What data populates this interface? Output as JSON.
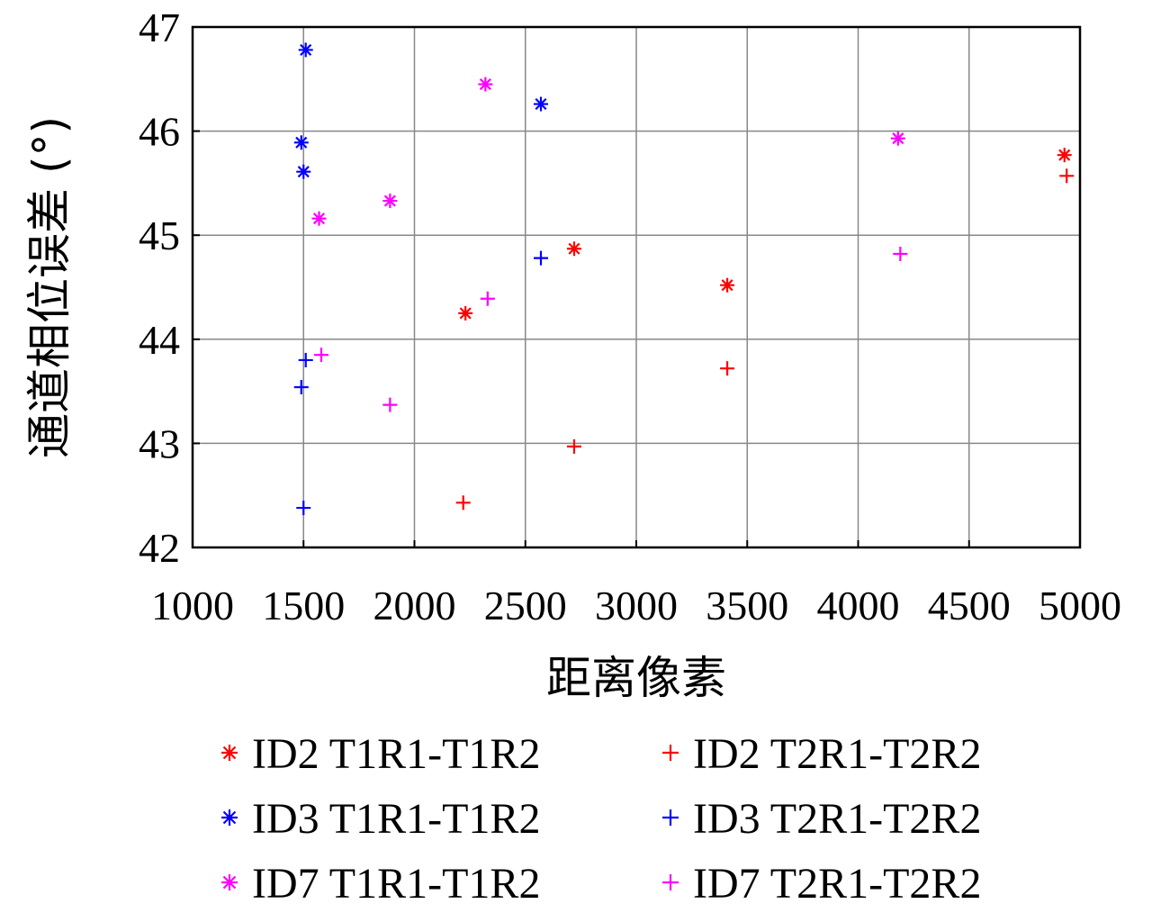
{
  "chart_data": {
    "type": "scatter",
    "title": "",
    "xlabel": "距离像素",
    "ylabel": "通道相位误差 (°)",
    "xlim": [
      1000,
      5000
    ],
    "ylim": [
      42,
      47
    ],
    "xticks": [
      1000,
      1500,
      2000,
      2500,
      3000,
      3500,
      4000,
      4500,
      5000
    ],
    "yticks": [
      42,
      43,
      44,
      45,
      46,
      47
    ],
    "grid": true,
    "legend_position": "bottom",
    "series": [
      {
        "name": "ID2 T1R1-T1R2",
        "marker": "asterisk",
        "color": "#ff0000",
        "points": [
          {
            "x": 2230,
            "y": 44.25
          },
          {
            "x": 2720,
            "y": 44.87
          },
          {
            "x": 3410,
            "y": 44.52
          },
          {
            "x": 4930,
            "y": 45.77
          }
        ]
      },
      {
        "name": "ID2 T2R1-T2R2",
        "marker": "plus",
        "color": "#ff0000",
        "points": [
          {
            "x": 2220,
            "y": 42.43
          },
          {
            "x": 2720,
            "y": 42.97
          },
          {
            "x": 3410,
            "y": 43.72
          },
          {
            "x": 4940,
            "y": 45.57
          }
        ]
      },
      {
        "name": "ID3 T1R1-T1R2",
        "marker": "asterisk",
        "color": "#0000ff",
        "points": [
          {
            "x": 1510,
            "y": 46.78
          },
          {
            "x": 1490,
            "y": 45.89
          },
          {
            "x": 1500,
            "y": 45.61
          },
          {
            "x": 2570,
            "y": 46.26
          }
        ]
      },
      {
        "name": "ID3 T2R1-T2R2",
        "marker": "plus",
        "color": "#0000ff",
        "points": [
          {
            "x": 1510,
            "y": 43.8
          },
          {
            "x": 1490,
            "y": 43.54
          },
          {
            "x": 1500,
            "y": 42.38
          },
          {
            "x": 2570,
            "y": 44.78
          }
        ]
      },
      {
        "name": "ID7 T1R1-T1R2",
        "marker": "asterisk",
        "color": "#ff00ff",
        "points": [
          {
            "x": 1570,
            "y": 45.16
          },
          {
            "x": 1890,
            "y": 45.33
          },
          {
            "x": 2320,
            "y": 46.45
          },
          {
            "x": 4180,
            "y": 45.93
          }
        ]
      },
      {
        "name": "ID7 T2R1-T2R2",
        "marker": "plus",
        "color": "#ff00ff",
        "points": [
          {
            "x": 1580,
            "y": 43.85
          },
          {
            "x": 1890,
            "y": 43.37
          },
          {
            "x": 2330,
            "y": 44.39
          },
          {
            "x": 4190,
            "y": 44.82
          }
        ]
      }
    ]
  }
}
